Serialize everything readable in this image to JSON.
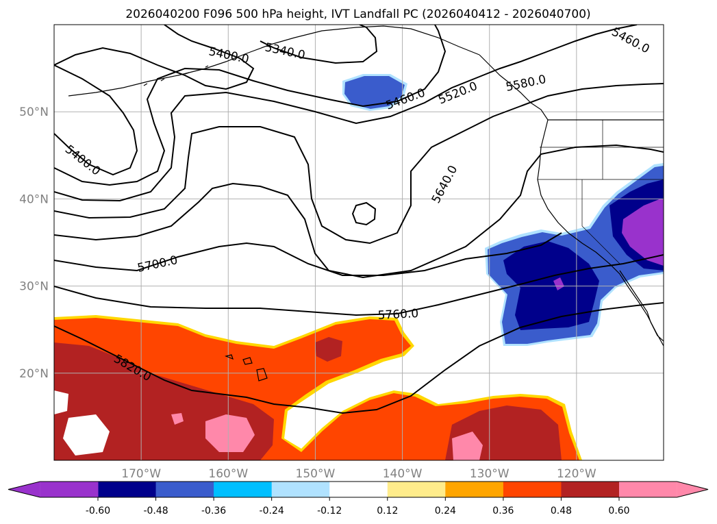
{
  "chart_data": {
    "type": "contour-map",
    "title": "2026040200 F096 500 hPa height, IVT Landfall PC (2026040412 - 2026040700)",
    "lon_range": [
      -180,
      -110
    ],
    "lat_range": [
      10,
      60
    ],
    "lat_ticks": [
      {
        "value": 50,
        "label": "50°N"
      },
      {
        "value": 40,
        "label": "40°N"
      },
      {
        "value": 30,
        "label": "30°N"
      },
      {
        "value": 20,
        "label": "20°N"
      }
    ],
    "lon_ticks": [
      {
        "value": -170,
        "label": "170°W"
      },
      {
        "value": -160,
        "label": "160°W"
      },
      {
        "value": -150,
        "label": "150°W"
      },
      {
        "value": -140,
        "label": "140°W"
      },
      {
        "value": -130,
        "label": "130°W"
      },
      {
        "value": -120,
        "label": "120°W"
      }
    ],
    "grid": true,
    "contour_labels": [
      "5400.0",
      "5340.0",
      "5400.0",
      "5460.0",
      "5460.0",
      "5520.0",
      "5580.0",
      "5640.0",
      "5700.0",
      "5760.0",
      "5820.0"
    ],
    "colorbar": {
      "levels": [
        "-0.60",
        "-0.48",
        "-0.36",
        "-0.24",
        "-0.12",
        "0.12",
        "0.24",
        "0.36",
        "0.48",
        "0.60"
      ],
      "colors": [
        "#9932cc",
        "#00008b",
        "#3a5ccc",
        "#00bfff",
        "#b0e2ff",
        "#ffffff",
        "#ffec8b",
        "#ffa500",
        "#ff4500",
        "#b22222",
        "#ff88aa"
      ],
      "extend": "both"
    }
  }
}
